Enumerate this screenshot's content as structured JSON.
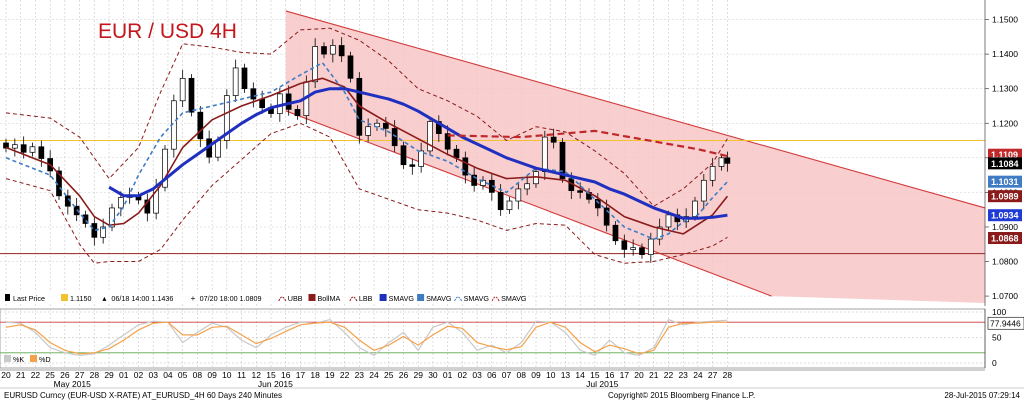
{
  "chart_data": {
    "type": "line",
    "title": "EUR / USD 4H",
    "price_axis": {
      "ylim": [
        1.068,
        1.1545
      ],
      "ticks": [
        "1.1500",
        "1.1400",
        "1.1300",
        "1.1200",
        "1.1100",
        "1.1000",
        "1.0900",
        "1.0800",
        "1.0700"
      ],
      "price_labels": [
        {
          "value": 1.1109,
          "label": "1.1109",
          "color": "#ffffff",
          "bg": "#c0282a"
        },
        {
          "value": 1.1084,
          "label": "1.1084",
          "color": "#ffffff",
          "bg": "#000000"
        },
        {
          "value": 1.1031,
          "label": "1.1031",
          "color": "#ffffff",
          "bg": "#3f7cc4"
        },
        {
          "value": 1.0989,
          "label": "1.0989",
          "color": "#ffffff",
          "bg": "#8b1a1a"
        },
        {
          "value": 1.0934,
          "label": "1.0934",
          "color": "#ffffff",
          "bg": "#1f3bd6"
        },
        {
          "value": 1.0868,
          "label": "1.0868",
          "color": "#ffffff",
          "bg": "#8b1a1a"
        }
      ]
    },
    "osc_axis": {
      "ylim": [
        0,
        100
      ],
      "ticks": [
        "100",
        "50",
        "0"
      ],
      "value_label": {
        "value": 77.9446,
        "label": "77.9446"
      }
    },
    "time_axis": {
      "x_range": [
        0,
        66.5
      ],
      "day_ticks": [
        {
          "x": 0,
          "label": "20"
        },
        {
          "x": 1,
          "label": "21"
        },
        {
          "x": 2,
          "label": "22"
        },
        {
          "x": 3,
          "label": "25"
        },
        {
          "x": 4,
          "label": "26"
        },
        {
          "x": 5,
          "label": "27"
        },
        {
          "x": 6,
          "label": "28"
        },
        {
          "x": 7,
          "label": "29"
        },
        {
          "x": 8,
          "label": "01"
        },
        {
          "x": 9,
          "label": "02"
        },
        {
          "x": 10,
          "label": "03"
        },
        {
          "x": 11,
          "label": "04"
        },
        {
          "x": 12,
          "label": "05"
        },
        {
          "x": 13,
          "label": "08"
        },
        {
          "x": 14,
          "label": "09"
        },
        {
          "x": 15,
          "label": "10"
        },
        {
          "x": 16,
          "label": "11"
        },
        {
          "x": 17,
          "label": "12"
        },
        {
          "x": 18,
          "label": "15"
        },
        {
          "x": 19,
          "label": "16"
        },
        {
          "x": 20,
          "label": "17"
        },
        {
          "x": 21,
          "label": "18"
        },
        {
          "x": 22,
          "label": "19"
        },
        {
          "x": 23,
          "label": "22"
        },
        {
          "x": 24,
          "label": "23"
        },
        {
          "x": 25,
          "label": "24"
        },
        {
          "x": 26,
          "label": "25"
        },
        {
          "x": 27,
          "label": "26"
        },
        {
          "x": 28,
          "label": "29"
        },
        {
          "x": 29,
          "label": "30"
        },
        {
          "x": 30,
          "label": "01"
        },
        {
          "x": 31,
          "label": "02"
        },
        {
          "x": 32,
          "label": "03"
        },
        {
          "x": 33,
          "label": "06"
        },
        {
          "x": 34,
          "label": "07"
        },
        {
          "x": 35,
          "label": "08"
        },
        {
          "x": 36,
          "label": "09"
        },
        {
          "x": 37,
          "label": "10"
        },
        {
          "x": 38,
          "label": "13"
        },
        {
          "x": 39,
          "label": "14"
        },
        {
          "x": 40,
          "label": "15"
        },
        {
          "x": 41,
          "label": "16"
        },
        {
          "x": 42,
          "label": "17"
        },
        {
          "x": 43,
          "label": "20"
        },
        {
          "x": 44,
          "label": "21"
        },
        {
          "x": 45,
          "label": "22"
        },
        {
          "x": 46,
          "label": "23"
        },
        {
          "x": 47,
          "label": "24"
        },
        {
          "x": 48,
          "label": "27"
        },
        {
          "x": 49,
          "label": "28"
        }
      ],
      "months": [
        {
          "x": 4.5,
          "label": "May 2015"
        },
        {
          "x": 18.3,
          "label": "Jun 2015"
        },
        {
          "x": 40.5,
          "label": "Jul 2015"
        }
      ]
    },
    "legend": [
      {
        "label": "Last Price",
        "style": "candle",
        "color": "#000000"
      },
      {
        "label": "1.1150",
        "style": "box",
        "color": "#f2c12e"
      },
      {
        "label": "06/18 14:00 1.1436",
        "style": "high",
        "color": "#000000"
      },
      {
        "label": "07/20 18:00 1.0809",
        "style": "low",
        "color": "#000000"
      },
      {
        "label": "UBB",
        "style": "dash",
        "color": "#8b1a1a"
      },
      {
        "label": "BollMA",
        "style": "box",
        "color": "#8b1a1a"
      },
      {
        "label": "LBB",
        "style": "dash",
        "color": "#8b1a1a"
      },
      {
        "label": "SMAVG",
        "style": "box",
        "color": "#1f2fbf"
      },
      {
        "label": "SMAVG",
        "style": "box",
        "color": "#3f7cc4"
      },
      {
        "label": "SMAVG",
        "style": "dash",
        "color": "#3f7cc4"
      },
      {
        "label": "SMAVG",
        "style": "dash",
        "color": "#c0282a"
      }
    ],
    "osc_legend": [
      {
        "label": "%K",
        "color": "#c9c9c9"
      },
      {
        "label": "%D",
        "color": "#f5a14a"
      }
    ],
    "horizontal_lines": [
      {
        "name": "resistance",
        "value": 1.115,
        "color": "#f2c12e"
      },
      {
        "name": "support",
        "value": 1.0823,
        "color": "#a33a3a"
      }
    ],
    "channel": {
      "upper": [
        [
          19,
          1.1525
        ],
        [
          66.5,
          1.0955
        ]
      ],
      "lower": [
        [
          19,
          1.1236
        ],
        [
          52,
          1.07
        ]
      ],
      "fill": "#f7c6c6"
    },
    "series": [
      {
        "name": "Last Price",
        "kind": "candle",
        "x": [
          0,
          0.6,
          1.2,
          1.8,
          2.4,
          3.0,
          3.6,
          4.2,
          4.8,
          5.4,
          6.0,
          6.6,
          7.2,
          7.8,
          8.4,
          9.0,
          9.6,
          10.2,
          10.8,
          11.4,
          12.0,
          12.6,
          13.2,
          13.8,
          14.4,
          15.0,
          15.6,
          16.2,
          16.8,
          17.4,
          18.0,
          18.6,
          19.2,
          19.8,
          20.4,
          21.0,
          21.6,
          22.2,
          22.8,
          23.4,
          24.0,
          24.6,
          25.2,
          25.8,
          26.4,
          27.0,
          27.6,
          28.2,
          28.8,
          29.4,
          30.0,
          30.6,
          31.2,
          31.8,
          32.4,
          33.0,
          33.6,
          34.2,
          34.8,
          35.4,
          36.0,
          36.6,
          37.2,
          37.8,
          38.4,
          39.0,
          39.6,
          40.2,
          40.8,
          41.4,
          42.0,
          42.6,
          43.2,
          43.8,
          44.4,
          45.0,
          45.6,
          46.2,
          46.8,
          47.4,
          48.0,
          48.6,
          49.0
        ],
        "close": [
          1.1128,
          1.1138,
          1.1116,
          1.1132,
          1.1098,
          1.1062,
          1.099,
          1.096,
          1.0935,
          1.091,
          1.087,
          1.09,
          1.0955,
          1.0985,
          1.099,
          1.0978,
          1.094,
          1.1015,
          1.1125,
          1.1265,
          1.133,
          1.1232,
          1.1155,
          1.1102,
          1.115,
          1.128,
          1.136,
          1.13,
          1.127,
          1.1245,
          1.1228,
          1.1285,
          1.124,
          1.1222,
          1.132,
          1.1422,
          1.14,
          1.1425,
          1.1395,
          1.133,
          1.1165,
          1.119,
          1.12,
          1.1185,
          1.1135,
          1.108,
          1.1075,
          1.112,
          1.1205,
          1.117,
          1.1125,
          1.11,
          1.105,
          1.102,
          1.1035,
          1.1,
          1.095,
          1.0975,
          1.101,
          1.1025,
          1.106,
          1.116,
          1.1145,
          1.104,
          1.1005,
          1.1,
          1.098,
          1.0955,
          1.0905,
          1.086,
          1.0835,
          1.084,
          1.082,
          1.0865,
          1.09,
          1.0935,
          1.0915,
          1.093,
          1.0975,
          1.1035,
          1.1075,
          1.11,
          1.1084
        ]
      },
      {
        "name": "UBB",
        "kind": "dash",
        "color": "#8b1a1a",
        "x": [
          0,
          3,
          5,
          7,
          9,
          10.5,
          12,
          14,
          16,
          18,
          20,
          22,
          24,
          26,
          28,
          30,
          32,
          34,
          36,
          38,
          40,
          42,
          44,
          46,
          48,
          49
        ],
        "y": [
          1.123,
          1.1215,
          1.116,
          1.104,
          1.113,
          1.129,
          1.143,
          1.142,
          1.1405,
          1.14,
          1.147,
          1.1475,
          1.144,
          1.138,
          1.13,
          1.1265,
          1.122,
          1.115,
          1.119,
          1.1175,
          1.112,
          1.1055,
          1.096,
          1.101,
          1.1085,
          1.1155
        ]
      },
      {
        "name": "LBB",
        "kind": "dash",
        "color": "#8b1a1a",
        "x": [
          0,
          3,
          5,
          6,
          7,
          9,
          10.5,
          12,
          14,
          16,
          18,
          20,
          22,
          24,
          26,
          28,
          30,
          32,
          34,
          36,
          38,
          40,
          42,
          44,
          46,
          48,
          49
        ],
        "y": [
          1.104,
          1.1005,
          1.085,
          1.0795,
          1.08,
          1.08,
          1.0835,
          1.092,
          1.102,
          1.1095,
          1.117,
          1.12,
          1.116,
          1.101,
          1.098,
          1.095,
          1.094,
          1.092,
          1.089,
          1.091,
          1.0905,
          1.082,
          1.0795,
          1.08,
          1.082,
          1.0845,
          1.087
        ]
      },
      {
        "name": "BollMA",
        "kind": "solid",
        "color": "#8b1a1a",
        "width": 1.6,
        "x": [
          0,
          3,
          5,
          6,
          7,
          8,
          9,
          10.5,
          12,
          14,
          16,
          18,
          20,
          21.5,
          23,
          24,
          26,
          28,
          30,
          32,
          34,
          36,
          38,
          40,
          42,
          44,
          46,
          48,
          49
        ],
        "y": [
          1.113,
          1.108,
          1.099,
          1.093,
          1.0905,
          1.091,
          1.094,
          1.102,
          1.113,
          1.121,
          1.125,
          1.128,
          1.1315,
          1.133,
          1.1305,
          1.125,
          1.12,
          1.1155,
          1.111,
          1.107,
          1.104,
          1.1045,
          1.1035,
          1.099,
          1.093,
          1.09,
          1.088,
          1.0935,
          1.0989
        ]
      },
      {
        "name": "SMAVG",
        "kind": "dash",
        "color": "#3f7cc4",
        "width": 1.6,
        "x": [
          0,
          3,
          5,
          6,
          7,
          8,
          9,
          10.5,
          12,
          14,
          16,
          18,
          20,
          21.5,
          23,
          24,
          26,
          28,
          30,
          32,
          34,
          36,
          38,
          40,
          42,
          44,
          45,
          46,
          47,
          48,
          49
        ],
        "y": [
          1.11,
          1.105,
          1.094,
          1.089,
          1.09,
          1.096,
          1.105,
          1.116,
          1.123,
          1.125,
          1.127,
          1.129,
          1.134,
          1.1375,
          1.129,
          1.121,
          1.1175,
          1.112,
          1.109,
          1.104,
          1.1,
          1.107,
          1.106,
          1.098,
          1.09,
          1.0865,
          1.088,
          1.0915,
          1.0935,
          1.0985,
          1.1031
        ]
      },
      {
        "name": "SMAVG",
        "kind": "solid",
        "color": "#1f2fbf",
        "width": 3,
        "x": [
          7,
          8,
          9,
          10,
          11,
          12,
          13,
          14,
          15,
          16,
          17,
          18,
          19,
          20,
          21,
          22,
          23,
          24,
          25,
          26,
          27,
          28,
          29,
          30,
          31,
          32,
          33,
          34,
          35,
          36,
          37,
          38,
          39,
          40,
          41,
          42,
          43,
          44,
          45,
          46,
          47,
          48,
          49
        ],
        "y": [
          1.1015,
          1.099,
          1.099,
          1.101,
          1.1045,
          1.108,
          1.111,
          1.114,
          1.117,
          1.12,
          1.1225,
          1.1245,
          1.1255,
          1.1265,
          1.129,
          1.13,
          1.13,
          1.129,
          1.128,
          1.127,
          1.1255,
          1.1235,
          1.121,
          1.1185,
          1.116,
          1.114,
          1.112,
          1.11,
          1.1085,
          1.107,
          1.106,
          1.105,
          1.104,
          1.103,
          1.101,
          1.0995,
          1.0975,
          1.0955,
          1.094,
          1.0925,
          1.0925,
          1.0928,
          1.0934
        ]
      },
      {
        "name": "SMAVG",
        "kind": "dash",
        "color": "#c0282a",
        "width": 2.2,
        "x": [
          30,
          35,
          40,
          45,
          47,
          49
        ],
        "y": [
          1.1165,
          1.116,
          1.1178,
          1.114,
          1.1125,
          1.1105
        ]
      }
    ],
    "oscillator": {
      "x": [
        0,
        1,
        2,
        3,
        4,
        5,
        6,
        7,
        8,
        9,
        10,
        11,
        12,
        13,
        14,
        15,
        16,
        17,
        18,
        19,
        20,
        21,
        22,
        23,
        24,
        25,
        26,
        27,
        28,
        29,
        30,
        31,
        32,
        33,
        34,
        35,
        36,
        37,
        38,
        39,
        40,
        41,
        42,
        43,
        44,
        45,
        46,
        47,
        48,
        49
      ],
      "k": [
        80,
        78,
        60,
        30,
        20,
        15,
        18,
        35,
        55,
        75,
        82,
        80,
        40,
        60,
        78,
        70,
        45,
        30,
        55,
        70,
        80,
        78,
        85,
        60,
        30,
        15,
        40,
        60,
        25,
        70,
        80,
        60,
        25,
        35,
        20,
        40,
        82,
        80,
        60,
        25,
        15,
        45,
        20,
        15,
        30,
        85,
        75,
        80,
        82,
        84
      ],
      "d": [
        70,
        75,
        65,
        40,
        25,
        18,
        20,
        28,
        45,
        65,
        78,
        80,
        55,
        55,
        70,
        72,
        55,
        38,
        48,
        62,
        75,
        78,
        80,
        70,
        45,
        25,
        35,
        52,
        35,
        55,
        72,
        68,
        40,
        32,
        26,
        32,
        70,
        80,
        70,
        40,
        22,
        35,
        28,
        18,
        25,
        70,
        78,
        78,
        80,
        80
      ]
    }
  },
  "footer": {
    "left": "EURUSD Curncy (EUR-USD X-RATE) AT_EURUSD_4H 60 Days 240 Minutes",
    "center": "Copyright© 2015 Bloomberg Finance L.P.",
    "right": "28-Jul-2015 07:29:14"
  }
}
